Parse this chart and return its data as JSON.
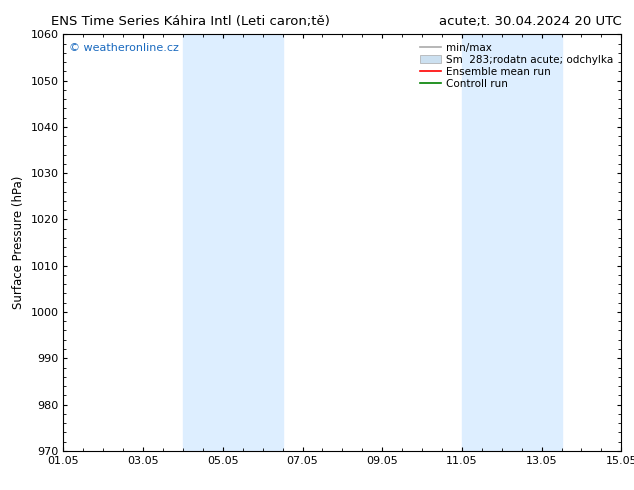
{
  "title_left": "ENS Time Series Káhira Intl (Leti caron;tě)",
  "title_right": "acute;t. 30.04.2024 20 UTC",
  "ylabel": "Surface Pressure (hPa)",
  "ylim": [
    970,
    1060
  ],
  "yticks": [
    970,
    980,
    990,
    1000,
    1010,
    1020,
    1030,
    1040,
    1050,
    1060
  ],
  "xlim": [
    0,
    14
  ],
  "xtick_positions": [
    0,
    2,
    4,
    6,
    8,
    10,
    12,
    14
  ],
  "xtick_labels": [
    "01.05",
    "03.05",
    "05.05",
    "07.05",
    "09.05",
    "11.05",
    "13.05",
    "15.05"
  ],
  "shaded_bands": [
    {
      "xmin": 3.0,
      "xmax": 5.5
    },
    {
      "xmin": 10.0,
      "xmax": 12.5
    }
  ],
  "shade_color": "#ddeeff",
  "watermark": "© weatheronline.cz",
  "watermark_color": "#1a6abf",
  "legend_labels": [
    "min/max",
    "Sm  283;rodatn acute; odchylka",
    "Ensemble mean run",
    "Controll run"
  ],
  "legend_colors": [
    "#aaaaaa",
    "#cce0f0",
    "red",
    "green"
  ],
  "bg_color": "#ffffff",
  "title_fontsize": 9.5,
  "axis_fontsize": 8.5,
  "tick_fontsize": 8,
  "legend_fontsize": 7.5
}
